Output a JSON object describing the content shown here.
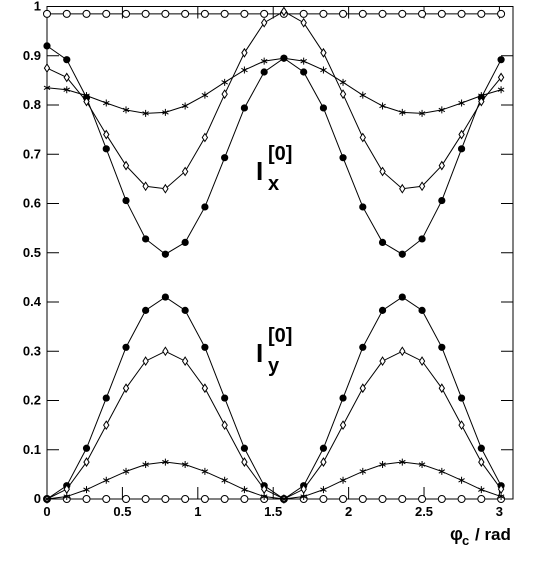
{
  "chart_data": {
    "type": "line",
    "x": [
      0,
      0.131,
      0.262,
      0.393,
      0.524,
      0.654,
      0.785,
      0.916,
      1.047,
      1.178,
      1.309,
      1.44,
      1.571,
      1.702,
      1.833,
      1.963,
      2.094,
      2.225,
      2.356,
      2.487,
      2.618,
      2.749,
      2.88,
      3.011
    ],
    "series": [
      {
        "marker": "open-circle",
        "color": "#000000",
        "values": [
          0.985,
          0.985,
          0.985,
          0.985,
          0.985,
          0.985,
          0.985,
          0.985,
          0.985,
          0.985,
          0.985,
          0.985,
          0.985,
          0.985,
          0.985,
          0.985,
          0.985,
          0.985,
          0.985,
          0.985,
          0.985,
          0.985,
          0.985,
          0.985
        ]
      },
      {
        "marker": "filled-circle",
        "color": "#000000",
        "values": [
          0.92,
          0.892,
          0.815,
          0.711,
          0.606,
          0.528,
          0.497,
          0.521,
          0.593,
          0.693,
          0.794,
          0.867,
          0.895,
          0.867,
          0.794,
          0.693,
          0.593,
          0.521,
          0.497,
          0.528,
          0.606,
          0.711,
          0.815,
          0.892
        ]
      },
      {
        "marker": "diamond",
        "color": "#000000",
        "values": [
          0.875,
          0.856,
          0.807,
          0.74,
          0.677,
          0.635,
          0.63,
          0.665,
          0.734,
          0.822,
          0.906,
          0.967,
          0.99,
          0.967,
          0.906,
          0.822,
          0.734,
          0.665,
          0.63,
          0.635,
          0.677,
          0.74,
          0.807,
          0.856
        ]
      },
      {
        "marker": "star",
        "color": "#000000",
        "values": [
          0.835,
          0.831,
          0.819,
          0.804,
          0.79,
          0.783,
          0.785,
          0.798,
          0.82,
          0.846,
          0.871,
          0.889,
          0.895,
          0.889,
          0.871,
          0.846,
          0.82,
          0.798,
          0.785,
          0.783,
          0.79,
          0.804,
          0.819,
          0.831
        ]
      },
      {
        "marker": "open-circle",
        "color": "#000000",
        "values": [
          0,
          0,
          0,
          0,
          0,
          0,
          0,
          0,
          0,
          0,
          0,
          0,
          0,
          0,
          0,
          0,
          0,
          0,
          0,
          0,
          0,
          0,
          0,
          0
        ]
      },
      {
        "marker": "filled-circle",
        "color": "#000000",
        "values": [
          0,
          0.027,
          0.103,
          0.205,
          0.308,
          0.383,
          0.41,
          0.383,
          0.308,
          0.205,
          0.103,
          0.027,
          0,
          0.027,
          0.103,
          0.205,
          0.308,
          0.383,
          0.41,
          0.383,
          0.308,
          0.205,
          0.103,
          0.027
        ]
      },
      {
        "marker": "diamond",
        "color": "#000000",
        "values": [
          0,
          0.02,
          0.075,
          0.15,
          0.225,
          0.28,
          0.3,
          0.28,
          0.225,
          0.15,
          0.075,
          0.02,
          0,
          0.02,
          0.075,
          0.15,
          0.225,
          0.28,
          0.3,
          0.28,
          0.225,
          0.15,
          0.075,
          0.02
        ]
      },
      {
        "marker": "star",
        "color": "#000000",
        "values": [
          0,
          0.005,
          0.019,
          0.038,
          0.056,
          0.07,
          0.075,
          0.07,
          0.056,
          0.038,
          0.019,
          0.005,
          0,
          0.005,
          0.019,
          0.038,
          0.056,
          0.07,
          0.075,
          0.07,
          0.056,
          0.038,
          0.019,
          0.005
        ]
      }
    ],
    "xlim": [
      0,
      3.09
    ],
    "xticks": [
      0,
      0.5,
      1,
      1.5,
      2,
      2.5,
      3
    ],
    "ylim": [
      0,
      1
    ],
    "yticks": [
      0,
      0.1,
      0.2,
      0.3,
      0.4,
      0.5,
      0.6,
      0.7,
      0.8,
      0.9,
      1
    ],
    "x_label": {
      "main": "φ",
      "sub": "c",
      "rest": "/ rad"
    },
    "annotations": [
      {
        "main": "I",
        "sub": "x",
        "sup": "[0]"
      },
      {
        "main": "I",
        "sub": "y",
        "sup": "[0]"
      }
    ]
  }
}
